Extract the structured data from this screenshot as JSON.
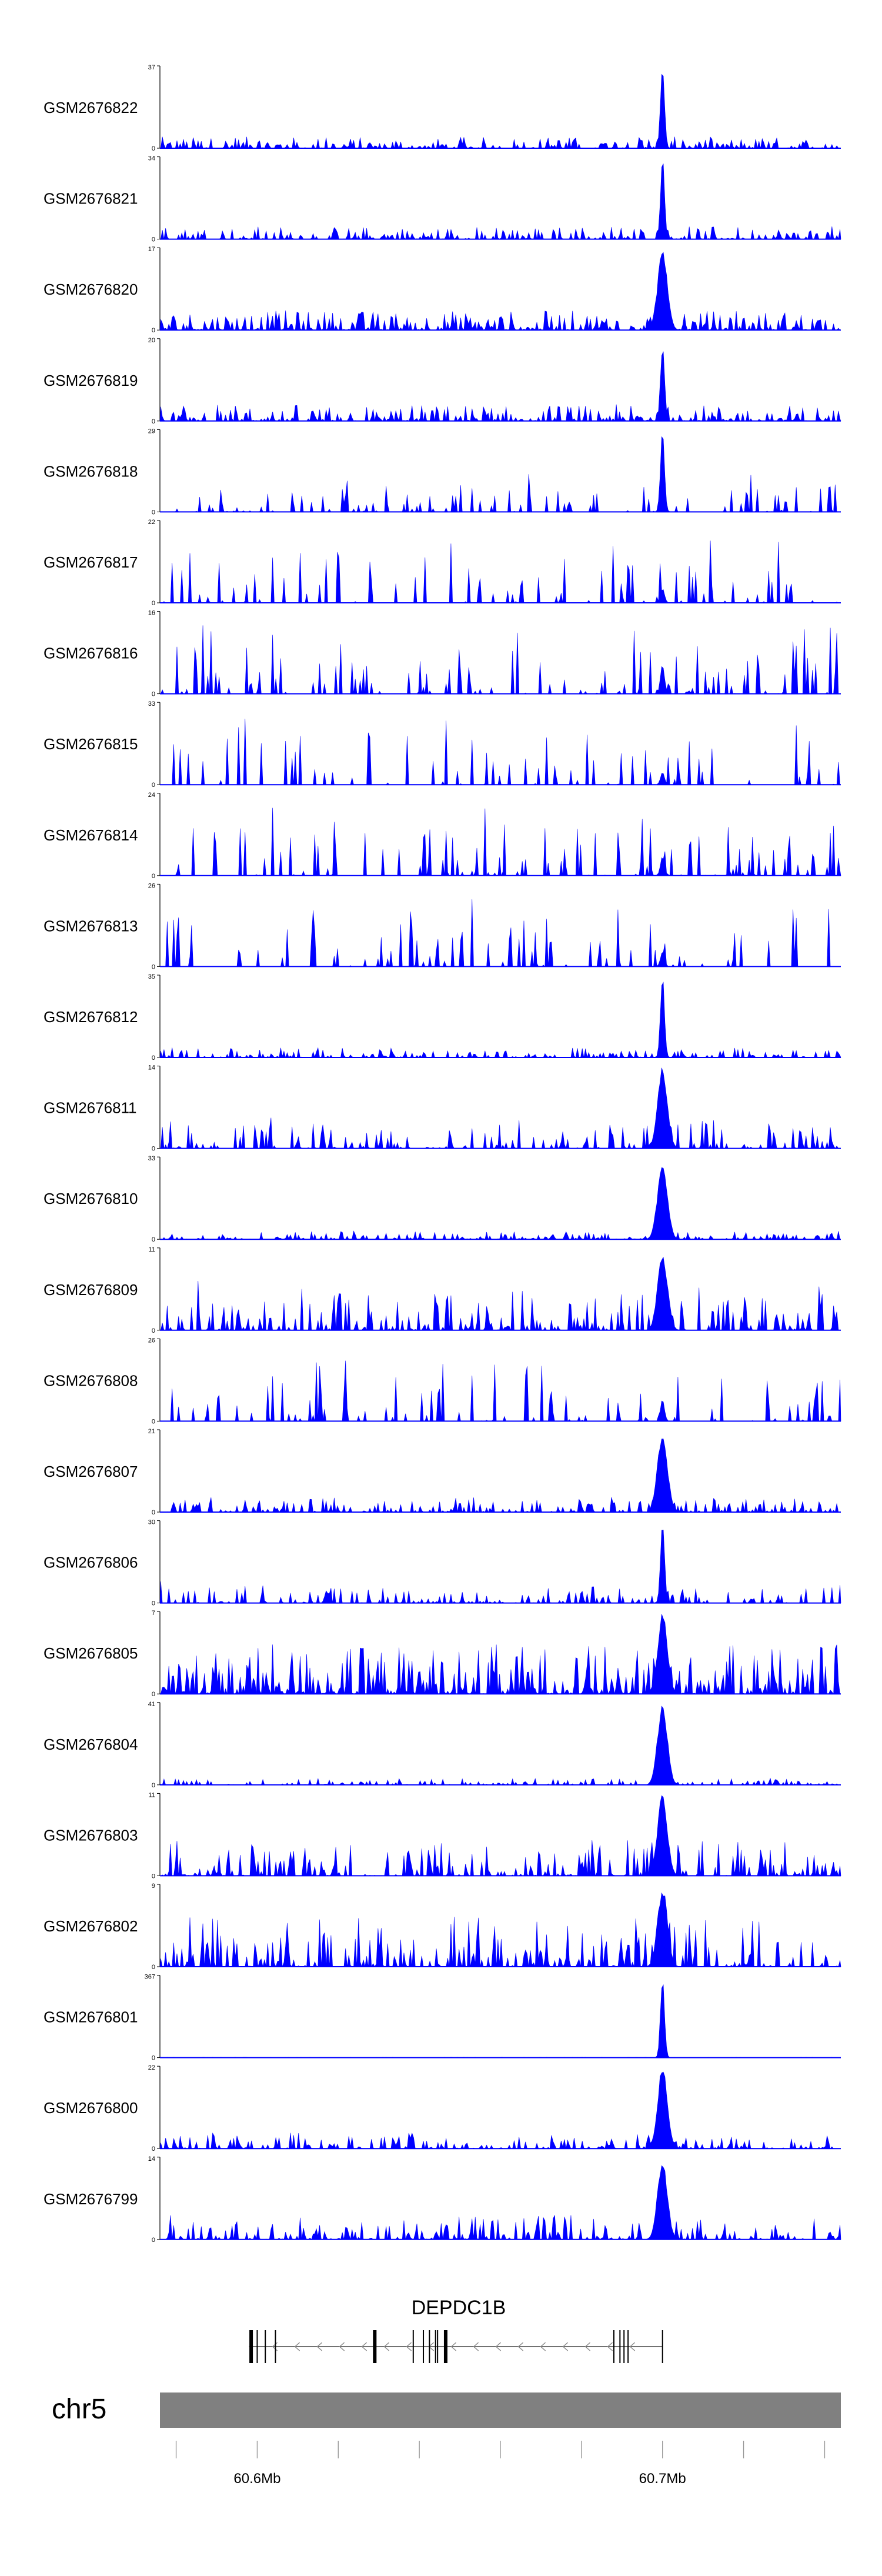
{
  "chart_data": {
    "type": "area",
    "title": "",
    "fill_color": "#0000ff",
    "grid": false,
    "chromosome": "chr5",
    "x_axis": {
      "ticks": [
        {
          "value": 60.58,
          "label": ""
        },
        {
          "value": 60.6,
          "label": "60.6Mb"
        },
        {
          "value": 60.62,
          "label": ""
        },
        {
          "value": 60.64,
          "label": ""
        },
        {
          "value": 60.66,
          "label": ""
        },
        {
          "value": 60.68,
          "label": ""
        },
        {
          "value": 60.7,
          "label": "60.7Mb"
        },
        {
          "value": 60.72,
          "label": ""
        },
        {
          "value": 60.74,
          "label": ""
        }
      ],
      "range_mb": [
        60.576,
        60.744
      ]
    },
    "gene": {
      "name": "DEPDC1B",
      "start_mb": 60.598,
      "end_mb": 60.7,
      "strand": "-",
      "exons_mb": [
        60.5985,
        60.6,
        60.602,
        60.6045,
        60.629,
        60.6385,
        60.641,
        60.6425,
        60.644,
        60.6445,
        60.6465,
        60.688,
        60.6895,
        60.6905,
        60.6915,
        60.7
      ]
    },
    "series": [
      {
        "name": "GSM2676822",
        "ymax": 37,
        "peak_mb": 60.7,
        "peak": 37,
        "noise": 0.14,
        "sparsity": 0.3,
        "gap": 0,
        "wide": false
      },
      {
        "name": "GSM2676821",
        "ymax": 34,
        "peak_mb": 60.7,
        "peak": 34,
        "noise": 0.16,
        "sparsity": 0.3,
        "gap": 0,
        "wide": false
      },
      {
        "name": "GSM2676820",
        "ymax": 17,
        "peak_mb": 60.7,
        "peak": 17,
        "noise": 0.24,
        "sparsity": 0.1,
        "gap": 0,
        "wide": true
      },
      {
        "name": "GSM2676819",
        "ymax": 20,
        "peak_mb": 60.7,
        "peak": 20,
        "noise": 0.2,
        "sparsity": 0.3,
        "gap": 0,
        "wide": false
      },
      {
        "name": "GSM2676818",
        "ymax": 29,
        "peak_mb": 60.7,
        "peak": 29,
        "noise": 0.35,
        "sparsity": 0.7,
        "gap": 0.5,
        "wide": false
      },
      {
        "name": "GSM2676817",
        "ymax": 22,
        "peak_mb": 60.7,
        "peak": 4,
        "noise": 0.55,
        "sparsity": 0.8,
        "gap": 0.6,
        "wide": false
      },
      {
        "name": "GSM2676816",
        "ymax": 16,
        "peak_mb": 60.7,
        "peak": 6,
        "noise": 0.6,
        "sparsity": 0.7,
        "gap": 0.7,
        "wide": false
      },
      {
        "name": "GSM2676815",
        "ymax": 33,
        "peak_mb": 60.7,
        "peak": 5,
        "noise": 0.6,
        "sparsity": 0.8,
        "gap": 0.7,
        "wide": false
      },
      {
        "name": "GSM2676814",
        "ymax": 24,
        "peak_mb": 60.7,
        "peak": 6,
        "noise": 0.6,
        "sparsity": 0.75,
        "gap": 0.6,
        "wide": false
      },
      {
        "name": "GSM2676813",
        "ymax": 26,
        "peak_mb": 60.7,
        "peak": 5,
        "noise": 0.6,
        "sparsity": 0.8,
        "gap": 0.7,
        "wide": false
      },
      {
        "name": "GSM2676812",
        "ymax": 35,
        "peak_mb": 60.7,
        "peak": 35,
        "noise": 0.12,
        "sparsity": 0.4,
        "gap": 0,
        "wide": false
      },
      {
        "name": "GSM2676811",
        "ymax": 14,
        "peak_mb": 60.7,
        "peak": 14,
        "noise": 0.35,
        "sparsity": 0.5,
        "gap": 0.2,
        "wide": true
      },
      {
        "name": "GSM2676810",
        "ymax": 33,
        "peak_mb": 60.7,
        "peak": 33,
        "noise": 0.1,
        "sparsity": 0.3,
        "gap": 0,
        "wide": true
      },
      {
        "name": "GSM2676809",
        "ymax": 11,
        "peak_mb": 60.7,
        "peak": 11,
        "noise": 0.45,
        "sparsity": 0.4,
        "gap": 0.2,
        "wide": true
      },
      {
        "name": "GSM2676808",
        "ymax": 26,
        "peak_mb": 60.7,
        "peak": 7,
        "noise": 0.55,
        "sparsity": 0.8,
        "gap": 0.7,
        "wide": false
      },
      {
        "name": "GSM2676807",
        "ymax": 21,
        "peak_mb": 60.7,
        "peak": 21,
        "noise": 0.18,
        "sparsity": 0.3,
        "gap": 0,
        "wide": true
      },
      {
        "name": "GSM2676806",
        "ymax": 30,
        "peak_mb": 60.7,
        "peak": 30,
        "noise": 0.22,
        "sparsity": 0.5,
        "gap": 0.1,
        "wide": false
      },
      {
        "name": "GSM2676805",
        "ymax": 7,
        "peak_mb": 60.7,
        "peak": 7,
        "noise": 0.6,
        "sparsity": 0.1,
        "gap": 0,
        "wide": true
      },
      {
        "name": "GSM2676804",
        "ymax": 41,
        "peak_mb": 60.7,
        "peak": 41,
        "noise": 0.08,
        "sparsity": 0.4,
        "gap": 0,
        "wide": true
      },
      {
        "name": "GSM2676803",
        "ymax": 11,
        "peak_mb": 60.7,
        "peak": 11,
        "noise": 0.45,
        "sparsity": 0.3,
        "gap": 0.1,
        "wide": true
      },
      {
        "name": "GSM2676802",
        "ymax": 9,
        "peak_mb": 60.7,
        "peak": 9,
        "noise": 0.6,
        "sparsity": 0.4,
        "gap": 0.1,
        "wide": true
      },
      {
        "name": "GSM2676801",
        "ymax": 367,
        "peak_mb": 60.7,
        "peak": 367,
        "noise": 0.005,
        "sparsity": 0.2,
        "gap": 0,
        "wide": false
      },
      {
        "name": "GSM2676800",
        "ymax": 22,
        "peak_mb": 60.7,
        "peak": 22,
        "noise": 0.2,
        "sparsity": 0.4,
        "gap": 0,
        "wide": true
      },
      {
        "name": "GSM2676799",
        "ymax": 14,
        "peak_mb": 60.7,
        "peak": 14,
        "noise": 0.3,
        "sparsity": 0.3,
        "gap": 0,
        "wide": true
      }
    ]
  }
}
